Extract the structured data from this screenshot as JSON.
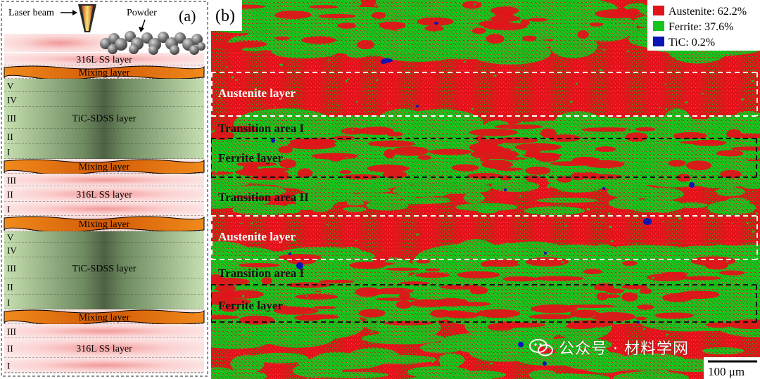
{
  "panel_a": {
    "label": "(a)",
    "laser_label": "Laser beam",
    "powder_label": "Powder",
    "layers": [
      {
        "kind": "ss",
        "text": "316L SS layer"
      },
      {
        "kind": "mix",
        "text": "Mixing layer"
      },
      {
        "kind": "roman",
        "text": "V"
      },
      {
        "kind": "roman",
        "text": "IV"
      },
      {
        "kind": "tic",
        "roman": "III",
        "text": "TiC-SDSS layer"
      },
      {
        "kind": "roman",
        "text": "II"
      },
      {
        "kind": "roman",
        "text": "I"
      },
      {
        "kind": "mix",
        "text": "Mixing layer"
      },
      {
        "kind": "roman",
        "text": "III"
      },
      {
        "kind": "ss",
        "roman": "II",
        "text": "316L SS layer"
      },
      {
        "kind": "roman",
        "text": "I"
      },
      {
        "kind": "mix",
        "text": "Mixing layer"
      },
      {
        "kind": "roman",
        "text": "V"
      },
      {
        "kind": "roman",
        "text": "IV"
      },
      {
        "kind": "tic",
        "roman": "III",
        "text": "TiC-SDSS layer"
      },
      {
        "kind": "roman",
        "text": "II"
      },
      {
        "kind": "roman",
        "text": "I"
      },
      {
        "kind": "mix",
        "text": "Mixing layer"
      },
      {
        "kind": "roman",
        "text": "III"
      },
      {
        "kind": "ss",
        "roman": "II",
        "text": "316L SS layer"
      },
      {
        "kind": "roman",
        "text": "I"
      }
    ]
  },
  "panel_b": {
    "label": "(b)",
    "legend": [
      {
        "name": "Austenite: 62.2%",
        "color": "#e0141a",
        "fraction": 0.622
      },
      {
        "name": "Ferrite: 37.6%",
        "color": "#15c41e",
        "fraction": 0.376
      },
      {
        "name": "TiC: 0.2%",
        "color": "#0a14b4",
        "fraction": 0.002
      }
    ],
    "regions": [
      {
        "text": "Austenite layer",
        "border": "white"
      },
      {
        "text": "Transition area I",
        "border": "white"
      },
      {
        "text": "Ferrite layer",
        "border": "black"
      },
      {
        "text": "Transition area II",
        "border": "none"
      },
      {
        "text": "Austenite layer",
        "border": "white"
      },
      {
        "text": "Transition area I",
        "border": "white"
      },
      {
        "text": "Ferrite layer",
        "border": "black"
      }
    ],
    "scale_bar": "100 μm",
    "watermark": "公众号 · 材料学网"
  },
  "colors": {
    "austenite": "#e0141a",
    "ferrite": "#15c41e",
    "tic": "#0a14b4",
    "mixing": "#f07a10",
    "ss_pink": "#f4a8a8",
    "tic_green": "#b9d8a4"
  }
}
